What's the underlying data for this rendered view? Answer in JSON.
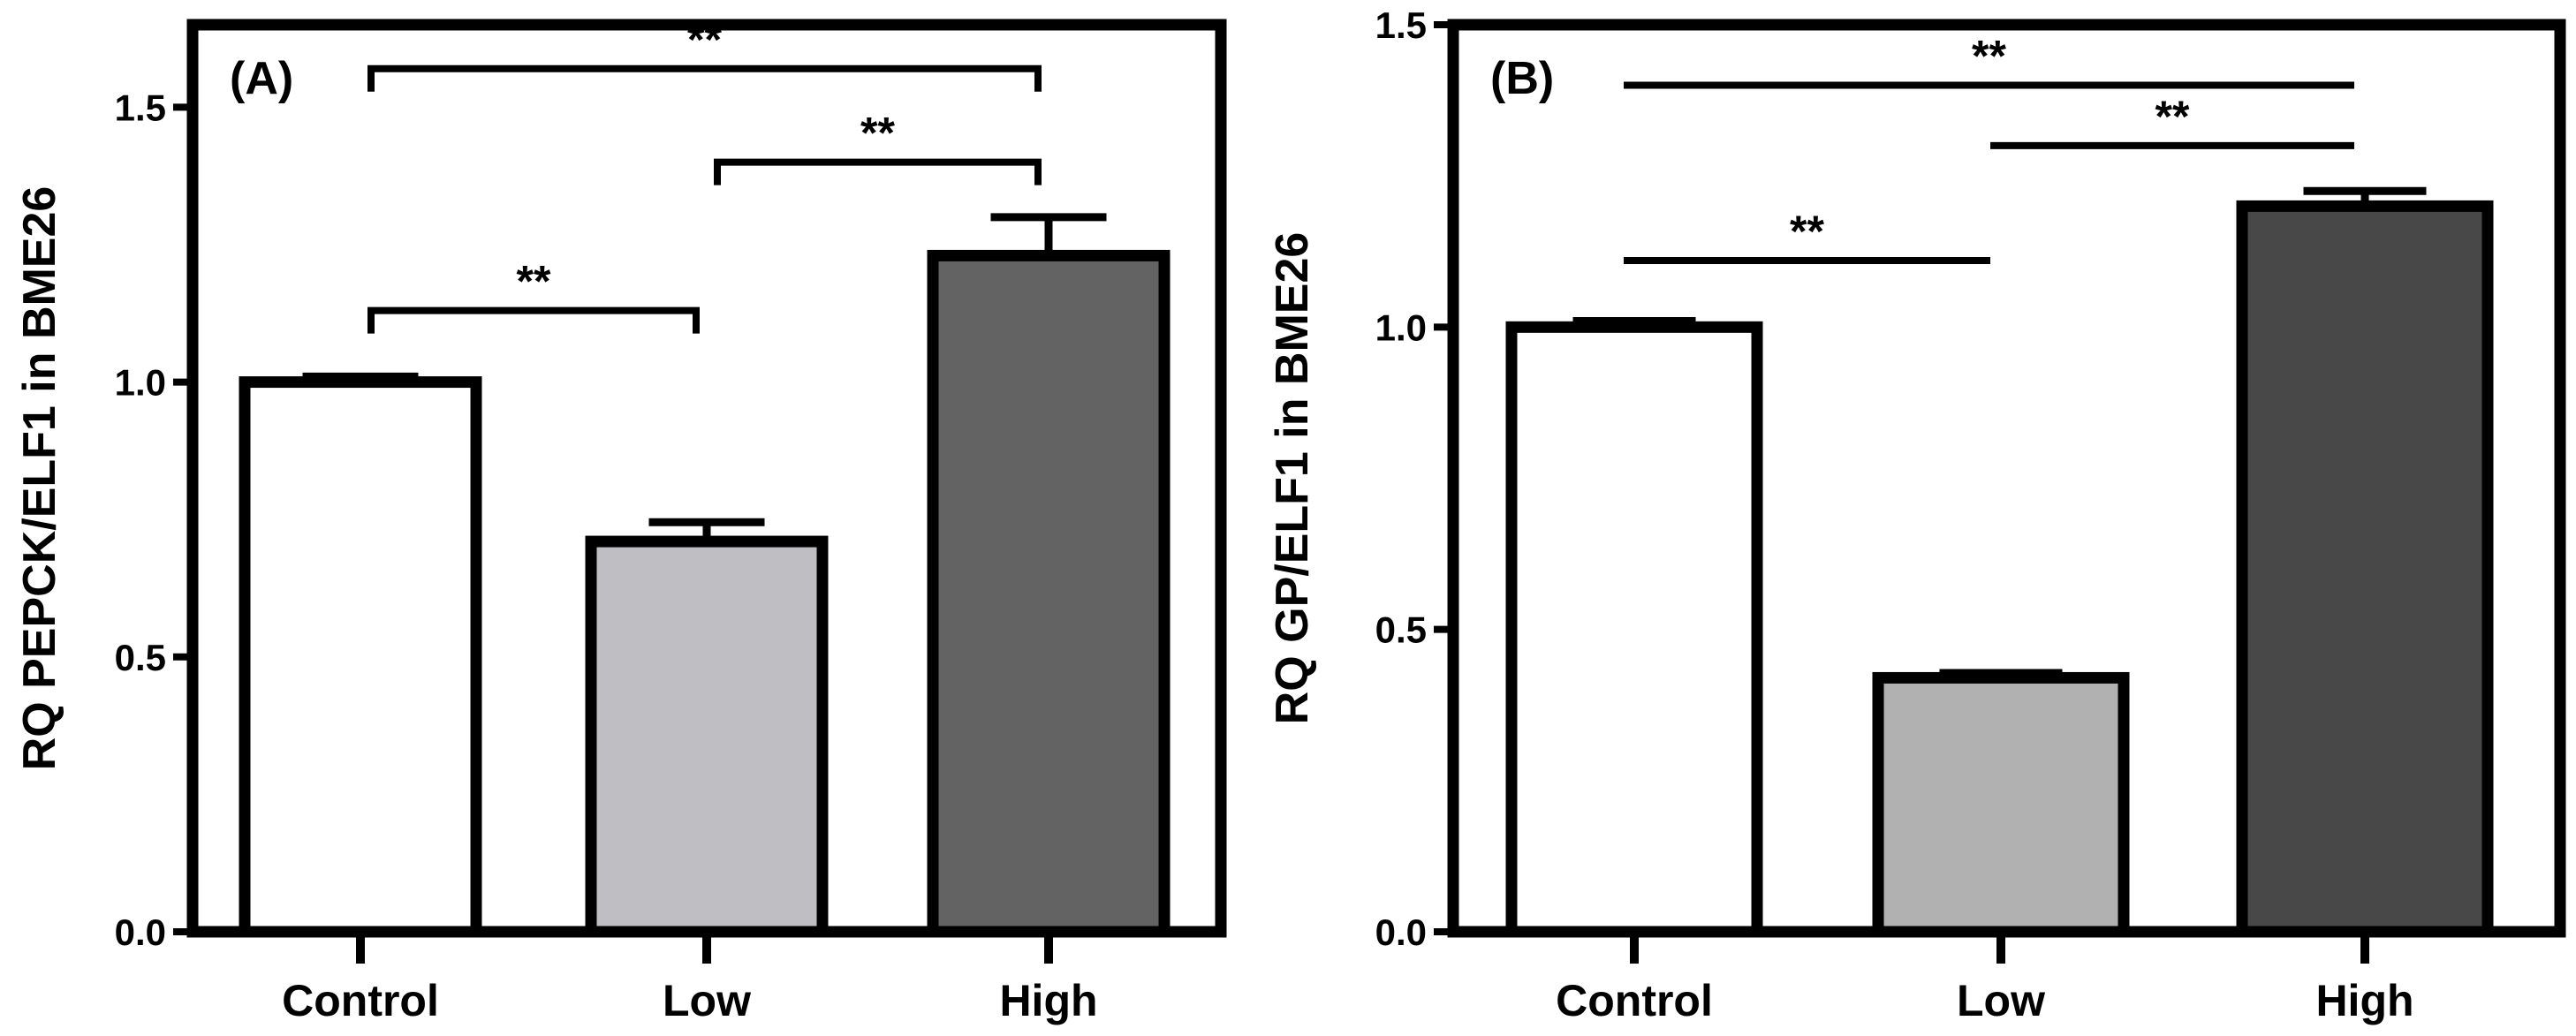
{
  "chart_data": [
    {
      "type": "bar",
      "panel_label": "(A)",
      "categories": [
        "Control",
        "Low",
        "High"
      ],
      "values": [
        1.0,
        0.71,
        1.23
      ],
      "errors": [
        0.01,
        0.035,
        0.07
      ],
      "bar_colors": [
        "#ffffff",
        "#bfbfc3",
        "#636363"
      ],
      "ylabel": "RQ PEPCK/ELF1 in BME26",
      "xlabel": "",
      "ylim": [
        0,
        1.65
      ],
      "yticks": [
        0.0,
        0.5,
        1.0,
        1.5
      ],
      "ytick_labels": [
        "0.0",
        "0.5",
        "1.0",
        "1.5"
      ],
      "significance_style": "bracket",
      "significance": [
        {
          "from": 0,
          "to": 1,
          "y": 1.13,
          "label": "**"
        },
        {
          "from": 1,
          "to": 2,
          "y": 1.4,
          "label": "**"
        },
        {
          "from": 0,
          "to": 2,
          "y": 1.57,
          "label": "**"
        }
      ]
    },
    {
      "type": "bar",
      "panel_label": "(B)",
      "categories": [
        "Control",
        "Low",
        "High"
      ],
      "values": [
        1.0,
        0.42,
        1.2
      ],
      "errors": [
        0.01,
        0.008,
        0.025
      ],
      "bar_colors": [
        "#ffffff",
        "#b1b1b1",
        "#484848"
      ],
      "ylabel": "RQ GP/ELF1 in BME26",
      "xlabel": "",
      "ylim": [
        0,
        1.5
      ],
      "yticks": [
        0.0,
        0.5,
        1.0,
        1.5
      ],
      "ytick_labels": [
        "0.0",
        "0.5",
        "1.0",
        "1.5"
      ],
      "significance_style": "line",
      "significance": [
        {
          "from": 0,
          "to": 1,
          "y": 1.11,
          "label": "**"
        },
        {
          "from": 1,
          "to": 2,
          "y": 1.3,
          "label": "**"
        },
        {
          "from": 0,
          "to": 2,
          "y": 1.4,
          "label": "**"
        }
      ]
    }
  ]
}
